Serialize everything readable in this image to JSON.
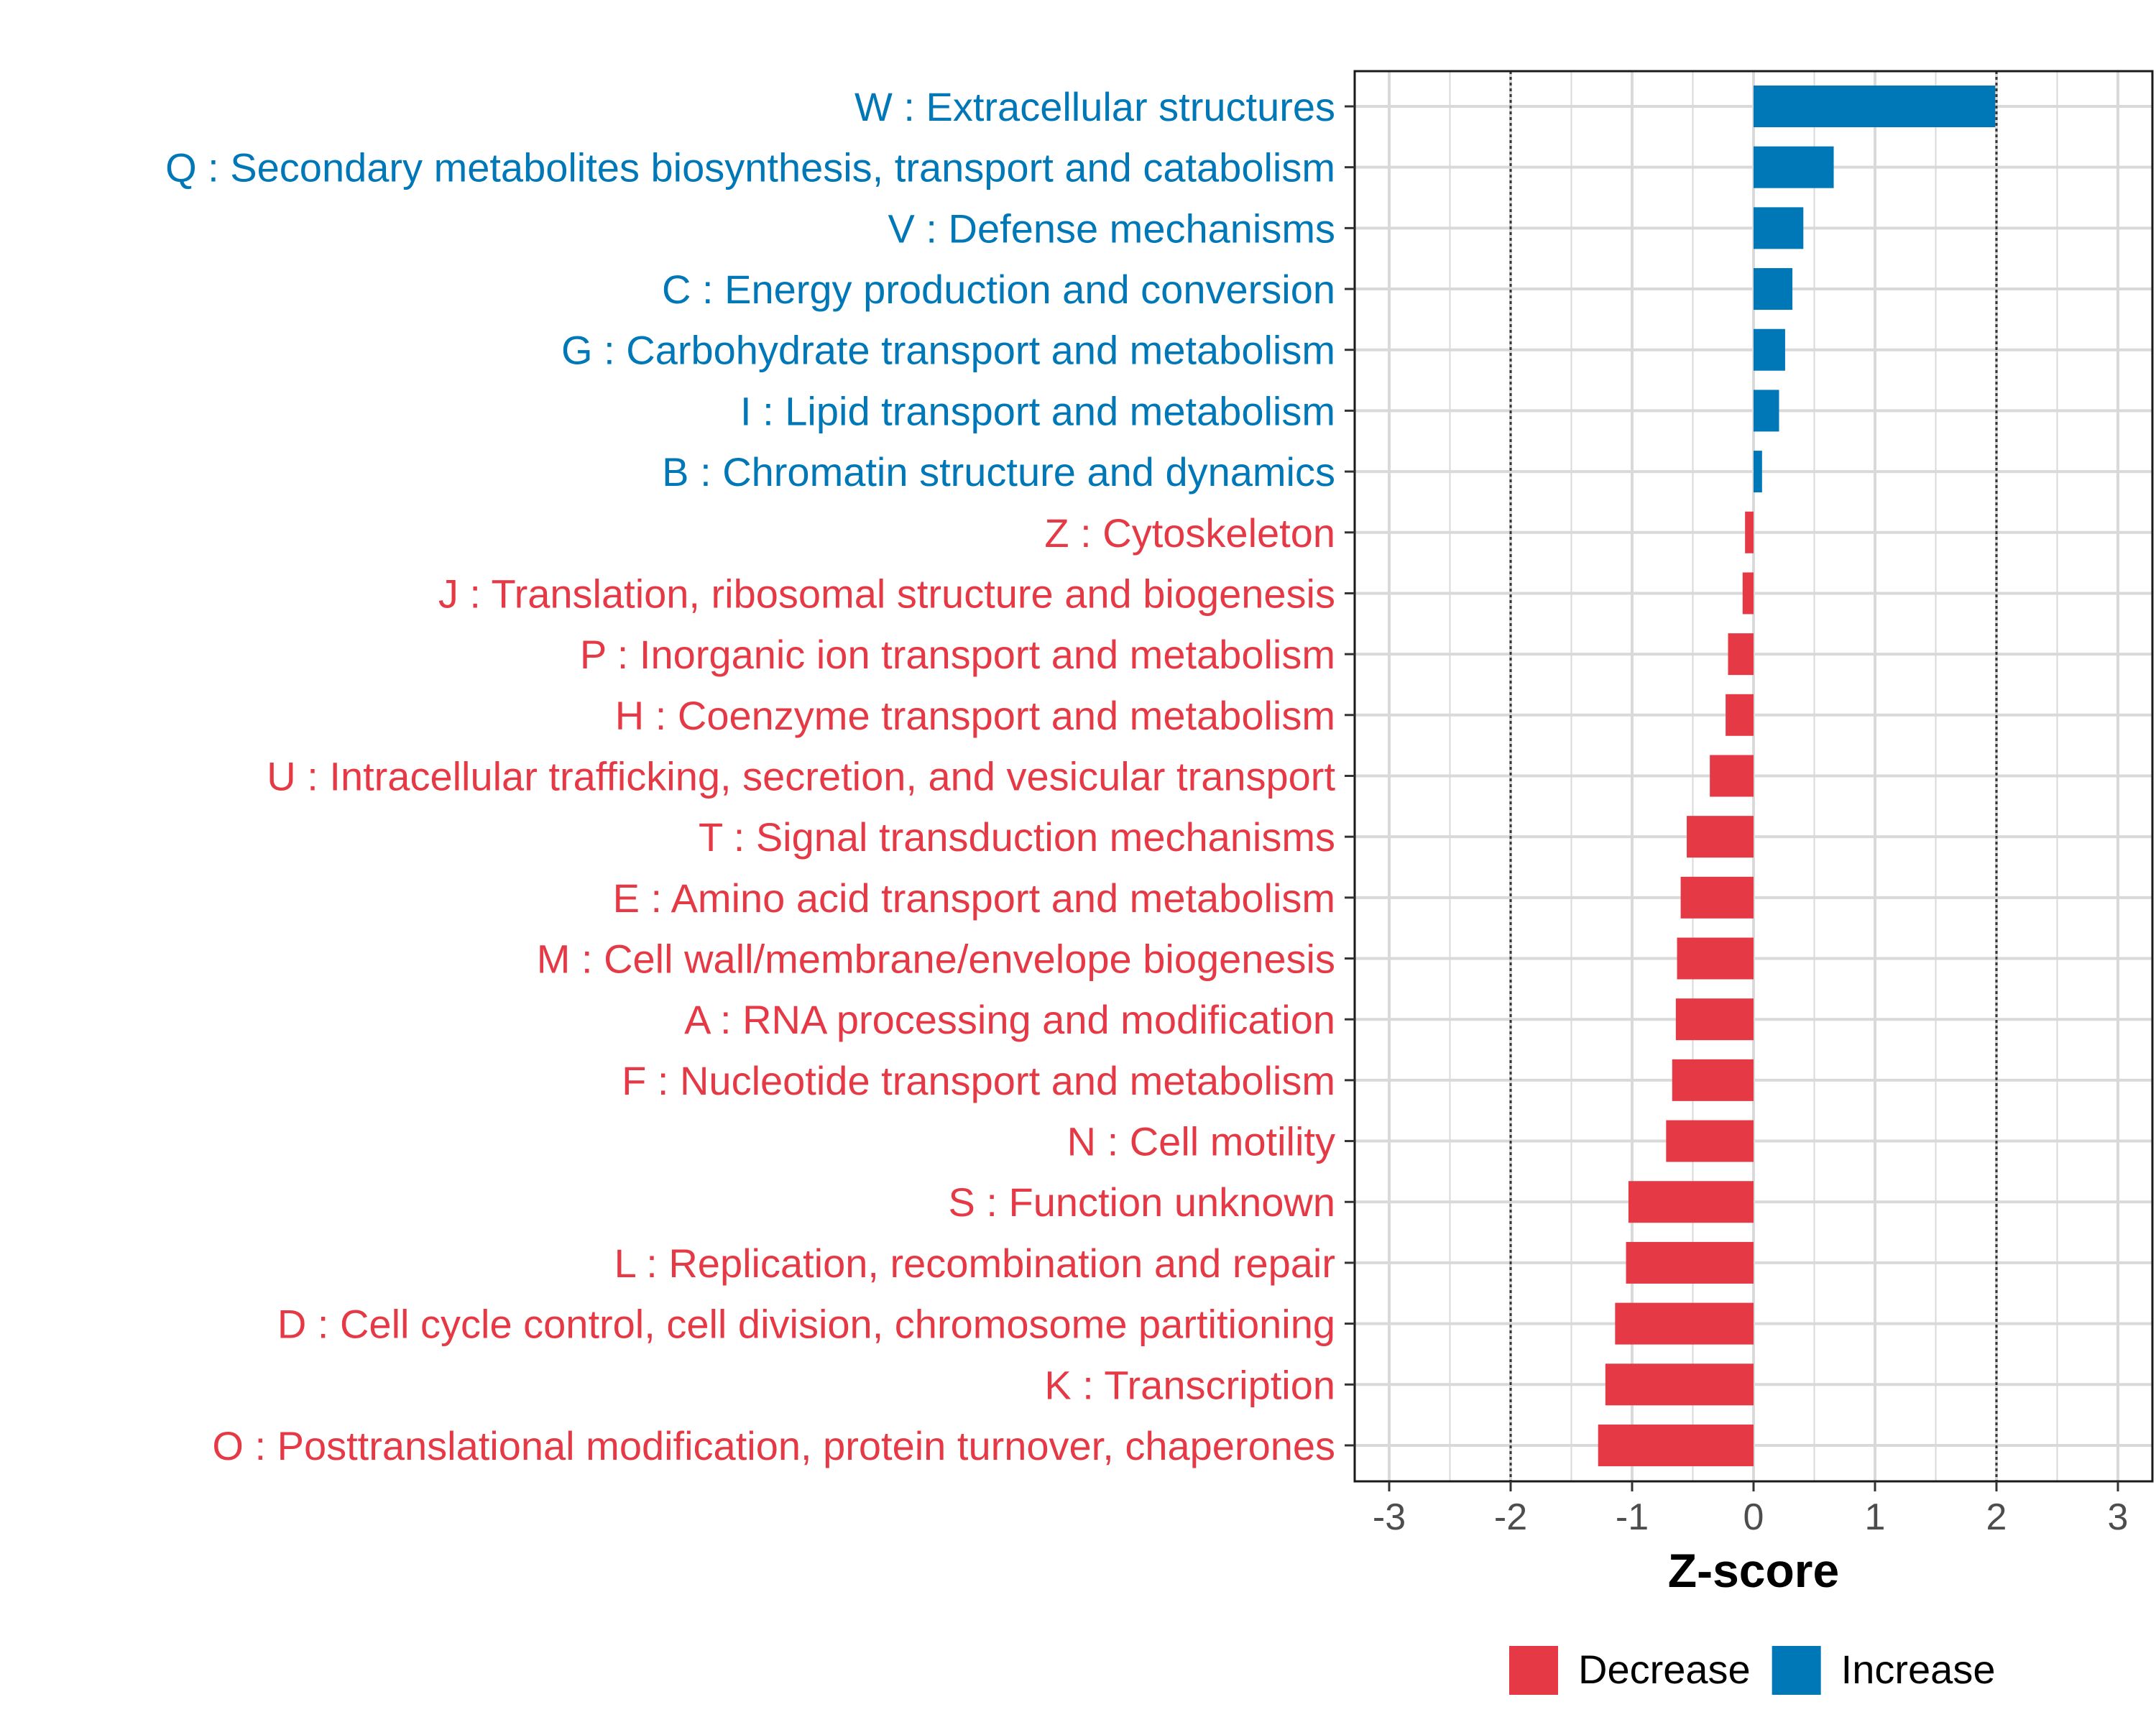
{
  "chart_data": {
    "type": "bar",
    "orientation": "horizontal",
    "title": "",
    "xlabel": "Z-score",
    "ylabel": "",
    "xlim": [
      -3.3,
      3.3
    ],
    "x_ticks": [
      "-3",
      "-2",
      "-1",
      "0",
      "1",
      "2",
      "3"
    ],
    "x_tick_values": [
      -3,
      -2,
      -1,
      0,
      1,
      2,
      3
    ],
    "reference_lines": [
      -2,
      2
    ],
    "grid": true,
    "legend_position": "bottom",
    "legend": [
      {
        "name": "Decrease",
        "color": "#E63946"
      },
      {
        "name": "Increase",
        "color": "#0077B6"
      }
    ],
    "categories": [
      "W : Extracellular structures",
      "Q : Secondary metabolites biosynthesis, transport and catabolism",
      "V : Defense mechanisms",
      "C : Energy production and conversion",
      "G : Carbohydrate transport and metabolism",
      "I : Lipid transport and metabolism",
      "B : Chromatin structure and dynamics",
      "Z : Cytoskeleton",
      "J : Translation, ribosomal structure and biogenesis",
      "P : Inorganic ion transport and metabolism",
      "H : Coenzyme transport and metabolism",
      "U : Intracellular trafficking, secretion, and vesicular transport",
      "T : Signal transduction mechanisms",
      "E : Amino acid transport and metabolism",
      "M : Cell wall/membrane/envelope biogenesis",
      "A : RNA processing and modification",
      "F : Nucleotide transport and metabolism",
      "N : Cell motility",
      "S : Function unknown",
      "L : Replication, recombination and repair",
      "D : Cell cycle control, cell division, chromosome partitioning",
      "K : Transcription",
      "O : Posttranslational modification, protein turnover, chaperones"
    ],
    "values": [
      1.99,
      0.66,
      0.41,
      0.32,
      0.26,
      0.21,
      0.07,
      -0.07,
      -0.09,
      -0.21,
      -0.23,
      -0.36,
      -0.55,
      -0.6,
      -0.63,
      -0.64,
      -0.67,
      -0.72,
      -1.03,
      -1.05,
      -1.14,
      -1.22,
      -1.28
    ],
    "directions": [
      "Increase",
      "Increase",
      "Increase",
      "Increase",
      "Increase",
      "Increase",
      "Increase",
      "Decrease",
      "Decrease",
      "Decrease",
      "Decrease",
      "Decrease",
      "Decrease",
      "Decrease",
      "Decrease",
      "Decrease",
      "Decrease",
      "Decrease",
      "Decrease",
      "Decrease",
      "Decrease",
      "Decrease",
      "Decrease"
    ]
  }
}
